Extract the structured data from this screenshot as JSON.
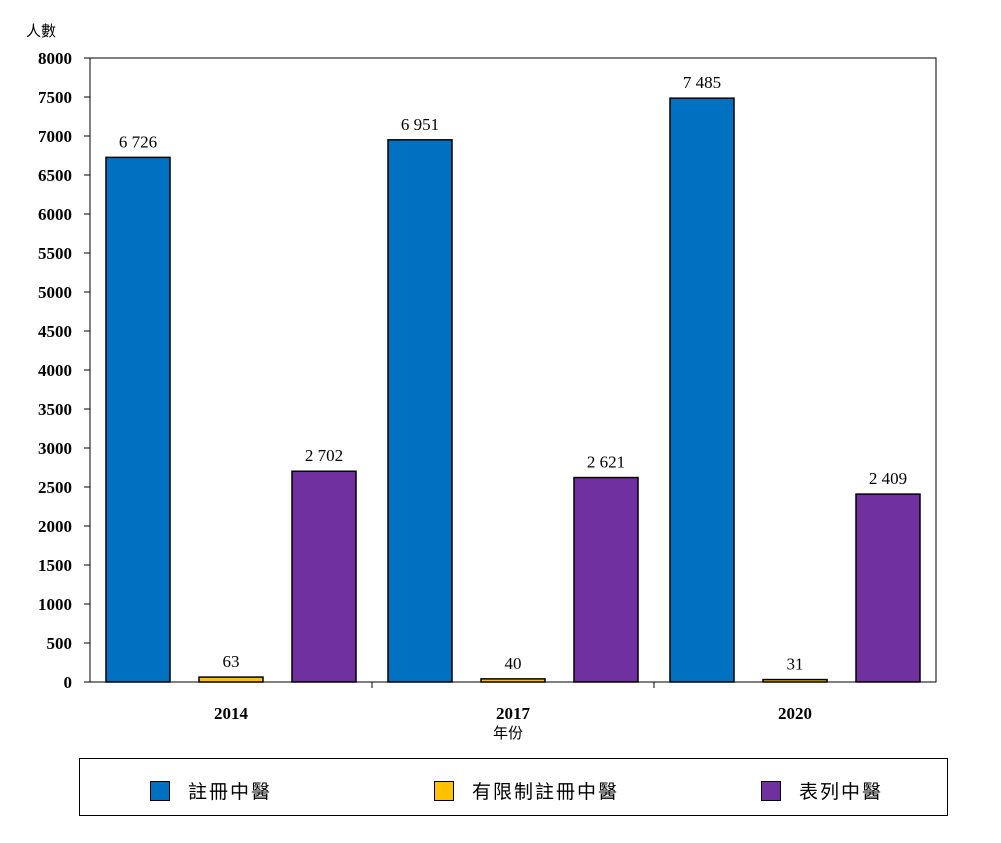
{
  "chart_data": {
    "type": "bar",
    "title": "",
    "xlabel": "年份",
    "ylabel": "人數",
    "categories": [
      "2014",
      "2017",
      "2020"
    ],
    "ylim": [
      0,
      8000
    ],
    "yticks": [
      0,
      500,
      1000,
      1500,
      2000,
      2500,
      3000,
      3500,
      4000,
      4500,
      5000,
      5500,
      6000,
      6500,
      7000,
      7500,
      8000
    ],
    "grid": false,
    "legend_position": "bottom",
    "series": [
      {
        "name": "註冊中醫",
        "color": "#0070C0",
        "values": [
          6726,
          6951,
          7485
        ],
        "labels": [
          "6 726",
          "6 951",
          "7 485"
        ]
      },
      {
        "name": "有限制註冊中醫",
        "color": "#FFC000",
        "values": [
          63,
          40,
          31
        ],
        "labels": [
          "63",
          "40",
          "31"
        ]
      },
      {
        "name": "表列中醫",
        "color": "#7030A0",
        "values": [
          2702,
          2621,
          2409
        ],
        "labels": [
          "2 702",
          "2 621",
          "2 409"
        ]
      }
    ]
  }
}
